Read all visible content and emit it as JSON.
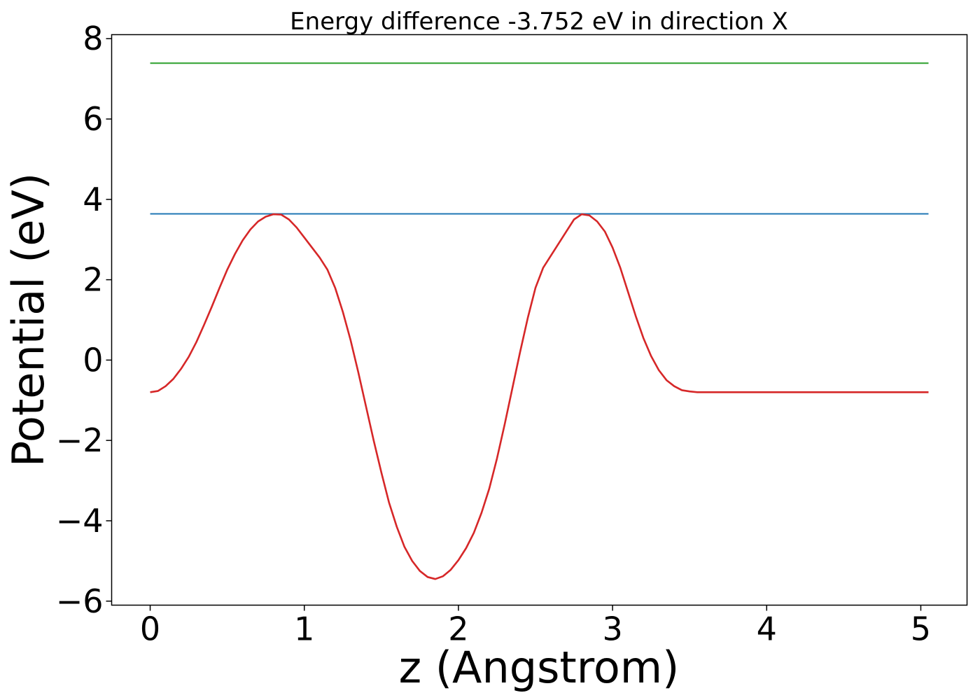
{
  "chart_data": {
    "type": "line",
    "title": "Energy difference -3.752 eV in direction X",
    "xlabel": "z (Angstrom)",
    "ylabel": "Potential (eV)",
    "xlim": [
      -0.25,
      5.3
    ],
    "ylim": [
      -6.1,
      8.1
    ],
    "xticks": [
      0,
      1,
      2,
      3,
      4,
      5
    ],
    "xtick_labels": [
      "0",
      "1",
      "2",
      "3",
      "4",
      "5"
    ],
    "yticks": [
      -6,
      -4,
      -2,
      0,
      2,
      4,
      6,
      8
    ],
    "ytick_labels": [
      "−6",
      "−4",
      "−2",
      "0",
      "2",
      "4",
      "6",
      "8"
    ],
    "grid": false,
    "legend": false,
    "series": [
      {
        "color": "#2ca02c",
        "x": [
          0,
          5.05
        ],
        "y": [
          7.39,
          7.39
        ]
      },
      {
        "color": "#1f77b4",
        "x": [
          0,
          5.05
        ],
        "y": [
          3.64,
          3.64
        ]
      },
      {
        "color": "#d62728",
        "x": [
          0,
          0.05,
          0.1,
          0.15,
          0.2,
          0.25,
          0.3,
          0.35,
          0.4,
          0.45,
          0.5,
          0.55,
          0.6,
          0.65,
          0.7,
          0.75,
          0.8,
          0.85,
          0.9,
          0.95,
          1.0,
          1.05,
          1.1,
          1.15,
          1.2,
          1.25,
          1.3,
          1.35,
          1.4,
          1.45,
          1.5,
          1.55,
          1.6,
          1.65,
          1.7,
          1.75,
          1.8,
          1.85,
          1.9,
          1.95,
          2.0,
          2.05,
          2.1,
          2.15,
          2.2,
          2.25,
          2.3,
          2.35,
          2.4,
          2.45,
          2.5,
          2.55,
          2.6,
          2.65,
          2.7,
          2.75,
          2.8,
          2.85,
          2.9,
          2.95,
          3.0,
          3.05,
          3.1,
          3.15,
          3.2,
          3.25,
          3.3,
          3.35,
          3.4,
          3.45,
          3.5,
          3.55,
          3.6,
          3.65,
          3.7,
          3.75,
          3.8,
          3.85,
          3.9,
          3.95,
          4.0,
          4.05,
          4.1,
          4.15,
          4.2,
          4.25,
          4.3,
          4.35,
          4.4,
          4.45,
          4.5,
          4.55,
          4.6,
          4.65,
          4.7,
          4.75,
          4.8,
          4.85,
          4.9,
          4.95,
          5.0,
          5.05
        ],
        "y": [
          -0.8,
          -0.77,
          -0.65,
          -0.47,
          -0.22,
          0.08,
          0.45,
          0.88,
          1.33,
          1.8,
          2.25,
          2.64,
          2.98,
          3.25,
          3.45,
          3.57,
          3.63,
          3.62,
          3.5,
          3.3,
          3.05,
          2.8,
          2.55,
          2.25,
          1.8,
          1.2,
          0.5,
          -0.3,
          -1.15,
          -2.0,
          -2.8,
          -3.55,
          -4.15,
          -4.65,
          -5.0,
          -5.25,
          -5.4,
          -5.45,
          -5.38,
          -5.22,
          -4.98,
          -4.68,
          -4.3,
          -3.8,
          -3.2,
          -2.45,
          -1.6,
          -0.7,
          0.2,
          1.05,
          1.8,
          2.3,
          2.6,
          2.9,
          3.2,
          3.5,
          3.63,
          3.6,
          3.45,
          3.2,
          2.8,
          2.3,
          1.7,
          1.1,
          0.55,
          0.1,
          -0.25,
          -0.5,
          -0.65,
          -0.75,
          -0.78,
          -0.8,
          -0.8,
          -0.8,
          -0.8,
          -0.8,
          -0.8,
          -0.8,
          -0.8,
          -0.8,
          -0.8,
          -0.8,
          -0.8,
          -0.8,
          -0.8,
          -0.8,
          -0.8,
          -0.8,
          -0.8,
          -0.8,
          -0.8,
          -0.8,
          -0.8,
          -0.8,
          -0.8,
          -0.8,
          -0.8,
          -0.8,
          -0.8,
          -0.8,
          -0.8,
          -0.8
        ]
      }
    ]
  }
}
